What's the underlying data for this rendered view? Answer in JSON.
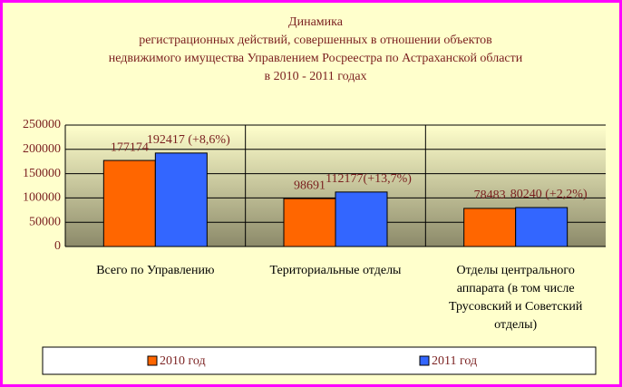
{
  "chart_data": {
    "type": "bar",
    "title": [
      "Динамика",
      "регистрационных действий, совершенных в отношении объектов",
      "недвижимого имущества Управлением Росреестра по Астраханской области",
      "в 2010 - 2011 годах"
    ],
    "categories": [
      "Всего по Управлению",
      "Териториальные отделы",
      "Отделы центрального аппарата (в том числе Трусовский и Советский отделы)"
    ],
    "series": [
      {
        "name": "2010 год",
        "color": "#ff6600",
        "values": [
          177174,
          98691,
          78483
        ]
      },
      {
        "name": "2011 год",
        "color": "#3366ff",
        "values": [
          192417,
          112177,
          80240
        ],
        "value_labels": [
          "192417 (+8,6%)",
          "112177(+13,7%)",
          "80240 (+2,2%)"
        ]
      }
    ],
    "ylim": [
      0,
      250000
    ],
    "yticks": [
      0,
      50000,
      100000,
      150000,
      200000,
      250000
    ],
    "grid": true
  }
}
